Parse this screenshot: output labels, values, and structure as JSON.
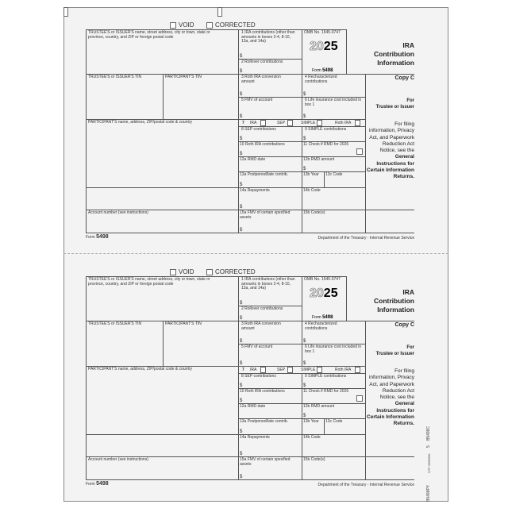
{
  "checkboxes": {
    "void": "VOID",
    "corrected": "CORRECTED"
  },
  "boxes": {
    "trustee_name": "TRUSTEE'S or ISSUER'S name, street address, city or town, state or province, country, and ZIP or foreign postal code",
    "trustee_tin": "TRUSTEE'S or ISSUER'S TIN",
    "participant_tin": "PARTICIPANT'S TIN",
    "participant_name": "PARTICIPANT'S name, address, ZIP/postal code & country",
    "account": "Account number (see instructions)",
    "b1": "1  IRA contributions (other than amounts in boxes 2-4, 8-10, 13a, and 14a)",
    "b2": "2  Rollover contributions",
    "b3": "3  Roth IRA conversion amount",
    "b4": "4  Recharacterized contributions",
    "b5": "5  FMV of account",
    "b6": "6  Life insurance cost included in box 1",
    "b7": "7",
    "b7_ira": "IRA",
    "b7_sep": "SEP",
    "b7_simple": "SIMPLE",
    "b7_roth": "Roth IRA",
    "b8": "8  SEP contributions",
    "b9": "9  SIMPLE contributions",
    "b10": "10  Roth IRA contributions",
    "b11": "11  Check if RMD for 2026",
    "b12a": "12a  RMD date",
    "b12b": "12b  RMD amount",
    "b13a": "13a  Postponed/late contrib.",
    "b13b": "13b  Year",
    "b13c": "13c  Code",
    "b14a": "14a  Repayments",
    "b14b": "14b  Code",
    "b15a": "15a  FMV of certain specified assets",
    "b15b": "15b  Code(s)",
    "dollar": "$"
  },
  "header": {
    "omb": "OMB No. 1545-0747",
    "year_outline": "20",
    "year_bold": "25",
    "form_prefix": "Form",
    "form_number": "5498"
  },
  "side": {
    "title": "IRA Contribution Information",
    "copy": "Copy C",
    "for": "For",
    "for_who": "Trustee or Issuer",
    "notice": "For filing information, Privacy Act, and Paperwork Reduction Act Notice, see the",
    "notice_bold": "General Instructions for Certain Information Returns."
  },
  "footer": {
    "form_prefix": "Form",
    "form_number": "5498",
    "dept": "Department of the Treasury - Internal Revenue Service"
  },
  "margin_codes": {
    "code1": "B5498C",
    "code2": "5",
    "code3": "NTF 2589996",
    "code4": "B5498PY"
  }
}
